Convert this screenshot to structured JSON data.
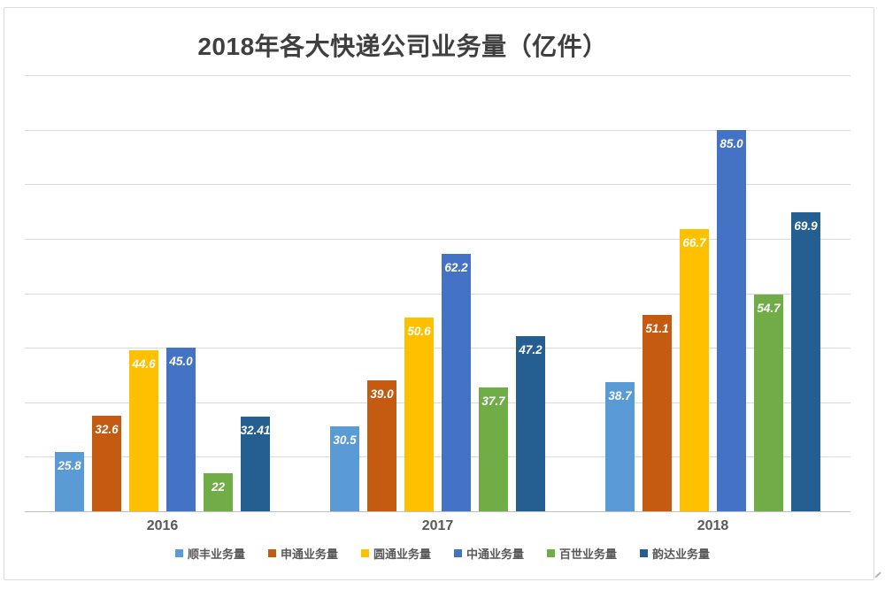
{
  "chart_data": {
    "type": "bar",
    "title": "2018年各大快递公司业务量（亿件）",
    "categories": [
      "2016",
      "2017",
      "2018"
    ],
    "series": [
      {
        "name": "顺丰业务量",
        "color": "#5B9BD5",
        "values": [
          25.8,
          30.5,
          38.7
        ],
        "labels": [
          "25.8",
          "30.5",
          "38.7"
        ]
      },
      {
        "name": "申通业务量",
        "color": "#C55A11",
        "values": [
          32.6,
          39.0,
          51.1
        ],
        "labels": [
          "32.6",
          "39.0",
          "51.1"
        ]
      },
      {
        "name": "圆通业务量",
        "color": "#FFC000",
        "values": [
          44.6,
          50.6,
          66.7
        ],
        "labels": [
          "44.6",
          "50.6",
          "66.7"
        ]
      },
      {
        "name": "中通业务量",
        "color": "#4472C4",
        "values": [
          45.0,
          62.2,
          85.0
        ],
        "labels": [
          "45.0",
          "62.2",
          "85.0"
        ]
      },
      {
        "name": "百世业务量",
        "color": "#70AD47",
        "values": [
          22,
          37.7,
          54.7
        ],
        "labels": [
          "22",
          "37.7",
          "54.7"
        ]
      },
      {
        "name": "韵达业务量",
        "color": "#255E91",
        "values": [
          32.41,
          47.2,
          69.9
        ],
        "labels": [
          "32.41",
          "47.2",
          "69.9"
        ]
      }
    ],
    "xlabel": "",
    "ylabel": "",
    "ylim": [
      15,
      95
    ],
    "y_major_unit": 10,
    "y_axis_labels_visible": false,
    "grid": true,
    "legend_position": "bottom",
    "value_labels": "inside-top, white bold italic"
  },
  "colors": {
    "title": "#3F3F3F",
    "gridline": "#D9D9D9",
    "axis_line": "#BFBFBF",
    "tick_label": "#595959",
    "legend_label": "#595959",
    "value_label": "#FFFFFF",
    "frame_border": "#DBDBDB"
  }
}
